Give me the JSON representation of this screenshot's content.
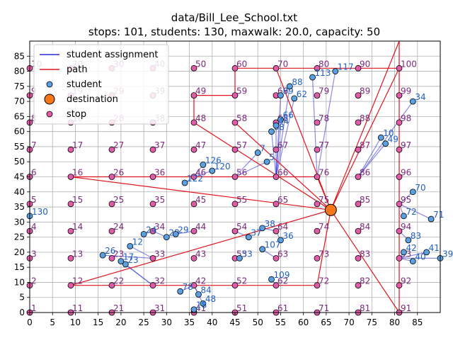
{
  "chart_data": {
    "type": "scatter",
    "title_line1": "data/Bill_Lee_School.txt",
    "title_line2": "stops: 101, students: 130, maxwalk: 20.0, capacity: 50",
    "xlim": [
      0,
      90
    ],
    "ylim": [
      0,
      90
    ],
    "xticks": [
      0,
      5,
      10,
      15,
      20,
      25,
      30,
      35,
      40,
      45,
      50,
      55,
      60,
      65,
      70,
      75,
      80,
      85
    ],
    "yticks": [
      0,
      5,
      10,
      15,
      20,
      25,
      30,
      35,
      40,
      45,
      50,
      55,
      60,
      65,
      70,
      75,
      80,
      85
    ],
    "grid": true,
    "legend": {
      "placement": "top-left",
      "entries": [
        {
          "label": "student assignment",
          "kind": "line",
          "color": "#2b2bd6"
        },
        {
          "label": "path",
          "kind": "line",
          "color": "#e0141e"
        },
        {
          "label": "student",
          "kind": "marker",
          "color": "#5aa0e0"
        },
        {
          "label": "destination",
          "kind": "big-marker",
          "color": "#f5771a"
        },
        {
          "label": "stop",
          "kind": "marker",
          "color": "#e05ca8"
        }
      ]
    },
    "colors": {
      "assignment": "#2b2bd6",
      "path": "#e0141e",
      "student": "#5aa0e0",
      "destination": "#f5771a",
      "stop": "#e05ca8",
      "stop_label": "#7a2a7a",
      "student_label": "#1f5fbf"
    },
    "destination": {
      "x": 66,
      "y": 34
    },
    "stops": [
      {
        "id": "1",
        "x": 0,
        "y": 0
      },
      {
        "id": "2",
        "x": 0,
        "y": 9
      },
      {
        "id": "3",
        "x": 0,
        "y": 18
      },
      {
        "id": "4",
        "x": 0,
        "y": 27
      },
      {
        "id": "5",
        "x": 0,
        "y": 36
      },
      {
        "id": "6",
        "x": 0,
        "y": 45
      },
      {
        "id": "7",
        "x": 0,
        "y": 54
      },
      {
        "id": "8",
        "x": 0,
        "y": 63
      },
      {
        "id": "9",
        "x": 0,
        "y": 72
      },
      {
        "id": "10",
        "x": 0,
        "y": 81
      },
      {
        "id": "11",
        "x": 9,
        "y": 0
      },
      {
        "id": "12",
        "x": 9,
        "y": 9
      },
      {
        "id": "13",
        "x": 9,
        "y": 18
      },
      {
        "id": "14",
        "x": 9,
        "y": 27
      },
      {
        "id": "15",
        "x": 9,
        "y": 36
      },
      {
        "id": "16",
        "x": 9,
        "y": 45
      },
      {
        "id": "17",
        "x": 9,
        "y": 54
      },
      {
        "id": "18",
        "x": 9,
        "y": 63
      },
      {
        "id": "19",
        "x": 9,
        "y": 72
      },
      {
        "id": "20",
        "x": 9,
        "y": 81
      },
      {
        "id": "21",
        "x": 18,
        "y": 0
      },
      {
        "id": "22",
        "x": 18,
        "y": 9
      },
      {
        "id": "23",
        "x": 18,
        "y": 18
      },
      {
        "id": "24",
        "x": 18,
        "y": 27
      },
      {
        "id": "25",
        "x": 18,
        "y": 36
      },
      {
        "id": "26",
        "x": 18,
        "y": 45
      },
      {
        "id": "27",
        "x": 18,
        "y": 54
      },
      {
        "id": "28",
        "x": 18,
        "y": 63
      },
      {
        "id": "29",
        "x": 18,
        "y": 72
      },
      {
        "id": "30",
        "x": 18,
        "y": 81
      },
      {
        "id": "31",
        "x": 27,
        "y": 0
      },
      {
        "id": "32",
        "x": 27,
        "y": 9
      },
      {
        "id": "33",
        "x": 27,
        "y": 18
      },
      {
        "id": "34",
        "x": 27,
        "y": 27
      },
      {
        "id": "35",
        "x": 27,
        "y": 36
      },
      {
        "id": "36",
        "x": 27,
        "y": 45
      },
      {
        "id": "37",
        "x": 27,
        "y": 54
      },
      {
        "id": "38",
        "x": 27,
        "y": 63
      },
      {
        "id": "39",
        "x": 27,
        "y": 72
      },
      {
        "id": "40",
        "x": 27,
        "y": 81
      },
      {
        "id": "41",
        "x": 36,
        "y": 0
      },
      {
        "id": "42",
        "x": 36,
        "y": 9
      },
      {
        "id": "43",
        "x": 36,
        "y": 18
      },
      {
        "id": "44",
        "x": 36,
        "y": 27
      },
      {
        "id": "45",
        "x": 36,
        "y": 36
      },
      {
        "id": "46",
        "x": 36,
        "y": 45
      },
      {
        "id": "47",
        "x": 36,
        "y": 54
      },
      {
        "id": "48",
        "x": 36,
        "y": 63
      },
      {
        "id": "49",
        "x": 36,
        "y": 72
      },
      {
        "id": "50",
        "x": 36,
        "y": 81
      },
      {
        "id": "51",
        "x": 45,
        "y": 0
      },
      {
        "id": "52",
        "x": 45,
        "y": 9
      },
      {
        "id": "53",
        "x": 45,
        "y": 18
      },
      {
        "id": "54",
        "x": 45,
        "y": 27
      },
      {
        "id": "55",
        "x": 45,
        "y": 36
      },
      {
        "id": "56",
        "x": 45,
        "y": 45
      },
      {
        "id": "57",
        "x": 45,
        "y": 54
      },
      {
        "id": "58",
        "x": 45,
        "y": 63
      },
      {
        "id": "59",
        "x": 45,
        "y": 72
      },
      {
        "id": "60",
        "x": 45,
        "y": 81
      },
      {
        "id": "61",
        "x": 54,
        "y": 0
      },
      {
        "id": "62",
        "x": 54,
        "y": 9
      },
      {
        "id": "63",
        "x": 54,
        "y": 18
      },
      {
        "id": "64",
        "x": 54,
        "y": 27
      },
      {
        "id": "65",
        "x": 54,
        "y": 36
      },
      {
        "id": "66",
        "x": 54,
        "y": 45
      },
      {
        "id": "67",
        "x": 54,
        "y": 54
      },
      {
        "id": "68",
        "x": 54,
        "y": 63
      },
      {
        "id": "69",
        "x": 54,
        "y": 72
      },
      {
        "id": "70",
        "x": 54,
        "y": 81
      },
      {
        "id": "71",
        "x": 63,
        "y": 0
      },
      {
        "id": "72",
        "x": 63,
        "y": 9
      },
      {
        "id": "73",
        "x": 63,
        "y": 18
      },
      {
        "id": "74",
        "x": 63,
        "y": 27
      },
      {
        "id": "75",
        "x": 63,
        "y": 36
      },
      {
        "id": "76",
        "x": 63,
        "y": 45
      },
      {
        "id": "77",
        "x": 63,
        "y": 54
      },
      {
        "id": "78",
        "x": 63,
        "y": 63
      },
      {
        "id": "79",
        "x": 63,
        "y": 72
      },
      {
        "id": "80",
        "x": 63,
        "y": 81
      },
      {
        "id": "81",
        "x": 72,
        "y": 0
      },
      {
        "id": "82",
        "x": 72,
        "y": 9
      },
      {
        "id": "83",
        "x": 72,
        "y": 18
      },
      {
        "id": "84",
        "x": 72,
        "y": 27
      },
      {
        "id": "85",
        "x": 72,
        "y": 36
      },
      {
        "id": "86",
        "x": 72,
        "y": 45
      },
      {
        "id": "87",
        "x": 72,
        "y": 54
      },
      {
        "id": "88",
        "x": 72,
        "y": 63
      },
      {
        "id": "89",
        "x": 72,
        "y": 72
      },
      {
        "id": "90",
        "x": 72,
        "y": 81
      },
      {
        "id": "91",
        "x": 81,
        "y": 0
      },
      {
        "id": "92",
        "x": 81,
        "y": 9
      },
      {
        "id": "93",
        "x": 81,
        "y": 18
      },
      {
        "id": "94",
        "x": 81,
        "y": 27
      },
      {
        "id": "95",
        "x": 81,
        "y": 36
      },
      {
        "id": "96",
        "x": 81,
        "y": 45
      },
      {
        "id": "97",
        "x": 81,
        "y": 54
      },
      {
        "id": "98",
        "x": 81,
        "y": 63
      },
      {
        "id": "99",
        "x": 81,
        "y": 72
      },
      {
        "id": "100",
        "x": 81,
        "y": 81
      }
    ],
    "students": [
      {
        "id": "130",
        "x": 0,
        "y": 32,
        "stop": "5"
      },
      {
        "id": "122",
        "x": 34,
        "y": 43,
        "stop": "46"
      },
      {
        "id": "126",
        "x": 38,
        "y": 49,
        "stop": "46"
      },
      {
        "id": "120",
        "x": 40,
        "y": 47,
        "stop": "46"
      },
      {
        "id": "7",
        "x": 50,
        "y": 53,
        "stop": "56"
      },
      {
        "id": "5",
        "x": 52,
        "y": 50,
        "stop": "56"
      },
      {
        "id": "68",
        "x": 53,
        "y": 60,
        "stop": "66"
      },
      {
        "id": "66",
        "x": 55,
        "y": 64,
        "stop": "66"
      },
      {
        "id": "44",
        "x": 54,
        "y": 62,
        "stop": "66"
      },
      {
        "id": "89",
        "x": 55,
        "y": 72,
        "stop": "66"
      },
      {
        "id": "88",
        "x": 57,
        "y": 75,
        "stop": "66"
      },
      {
        "id": "62",
        "x": 58,
        "y": 71,
        "stop": "66"
      },
      {
        "id": "113",
        "x": 62,
        "y": 78,
        "stop": "76"
      },
      {
        "id": "117",
        "x": 67,
        "y": 80,
        "stop": "76"
      },
      {
        "id": "10",
        "x": 77,
        "y": 58,
        "stop": "86"
      },
      {
        "id": "49",
        "x": 78,
        "y": 56,
        "stop": "86"
      },
      {
        "id": "34",
        "x": 84,
        "y": 70,
        "stop": "86"
      },
      {
        "id": "70",
        "x": 84,
        "y": 40,
        "stop": "95"
      },
      {
        "id": "72",
        "x": 82,
        "y": 32,
        "stop": "95"
      },
      {
        "id": "71",
        "x": 88,
        "y": 31,
        "stop": "95"
      },
      {
        "id": "83",
        "x": 83,
        "y": 24,
        "stop": "94"
      },
      {
        "id": "42",
        "x": 82,
        "y": 20,
        "stop": "93"
      },
      {
        "id": "41",
        "x": 87,
        "y": 20,
        "stop": "93"
      },
      {
        "id": "40",
        "x": 84,
        "y": 17,
        "stop": "93"
      },
      {
        "id": "39",
        "x": 90,
        "y": 18,
        "stop": "93"
      },
      {
        "id": "38",
        "x": 51,
        "y": 28,
        "stop": "64"
      },
      {
        "id": "37",
        "x": 48,
        "y": 25,
        "stop": "54"
      },
      {
        "id": "36",
        "x": 55,
        "y": 24,
        "stop": "64"
      },
      {
        "id": "107",
        "x": 51,
        "y": 21,
        "stop": "63"
      },
      {
        "id": "109",
        "x": 53,
        "y": 11,
        "stop": "62"
      },
      {
        "id": "53",
        "x": 46,
        "y": 18,
        "stop": "53"
      },
      {
        "id": "26",
        "x": 16,
        "y": 19,
        "stop": "33"
      },
      {
        "id": "23",
        "x": 21,
        "y": 16,
        "stop": "32"
      },
      {
        "id": "17",
        "x": 20,
        "y": 17,
        "stop": "32"
      },
      {
        "id": "12",
        "x": 22,
        "y": 22,
        "stop": "33"
      },
      {
        "id": "24",
        "x": 25,
        "y": 26,
        "stop": "34"
      },
      {
        "id": "28",
        "x": 30,
        "y": 25,
        "stop": "34"
      },
      {
        "id": "29",
        "x": 32,
        "y": 26,
        "stop": "44"
      },
      {
        "id": "78",
        "x": 33,
        "y": 7,
        "stop": "42"
      },
      {
        "id": "84",
        "x": 37,
        "y": 6,
        "stop": "42"
      },
      {
        "id": "48",
        "x": 38,
        "y": 3,
        "stop": "42"
      },
      {
        "id": "18",
        "x": 36,
        "y": 1,
        "stop": "41"
      }
    ],
    "path": [
      [
        45,
        63
      ],
      [
        66,
        34
      ],
      [
        63,
        45
      ],
      [
        54,
        45
      ],
      [
        45,
        45
      ],
      [
        9,
        45
      ],
      [
        66,
        34
      ],
      [
        54,
        81
      ],
      [
        81,
        81
      ],
      [
        81,
        90
      ],
      [
        66,
        34
      ],
      [
        81,
        0
      ],
      [
        81,
        81
      ],
      [
        66,
        34
      ],
      [
        9,
        9
      ],
      [
        27,
        9
      ],
      [
        36,
        9
      ],
      [
        63,
        9
      ],
      [
        66,
        34
      ],
      [
        36,
        63
      ],
      [
        36,
        72
      ],
      [
        45,
        72
      ],
      [
        45,
        81
      ],
      [
        63,
        81
      ]
    ]
  }
}
